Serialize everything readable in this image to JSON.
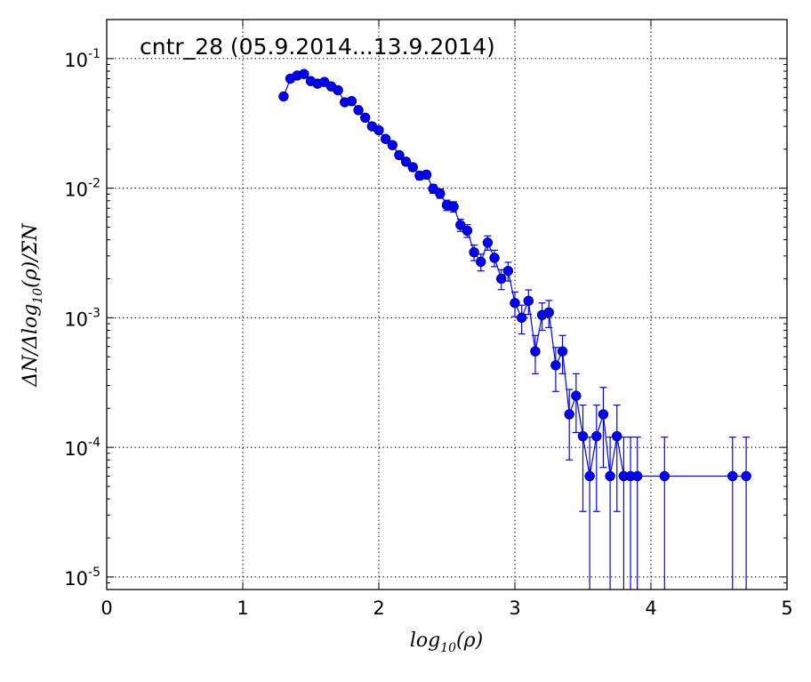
{
  "chart_data": {
    "type": "scatter",
    "title": "cntr_28 (05.9.2014...13.9.2014)",
    "xlabel": "log10(ρ)",
    "ylabel": "ΔN/Δlog10(ρ)/ΣN",
    "xlabel_parts": {
      "base": "log",
      "sub": "10",
      "arg": "(ρ)"
    },
    "ylabel_parts": {
      "pre": "ΔN/Δlog",
      "sub": "10",
      "arg": "(ρ)/ΣN"
    },
    "xlim": [
      0,
      5
    ],
    "ylim": [
      8e-06,
      0.2
    ],
    "yscale": "log",
    "grid": true,
    "legend": "none",
    "x_ticks": [
      {
        "value": 0,
        "label": "0"
      },
      {
        "value": 1,
        "label": "1"
      },
      {
        "value": 2,
        "label": "2"
      },
      {
        "value": 3,
        "label": "3"
      },
      {
        "value": 4,
        "label": "4"
      },
      {
        "value": 5,
        "label": "5"
      }
    ],
    "y_ticks": [
      {
        "value": 0.1,
        "base": "10",
        "exp": "-1"
      },
      {
        "value": 0.01,
        "base": "10",
        "exp": "-2"
      },
      {
        "value": 0.001,
        "base": "10",
        "exp": "-3"
      },
      {
        "value": 0.0001,
        "base": "10",
        "exp": "-4"
      },
      {
        "value": 1e-05,
        "base": "10",
        "exp": "-5"
      }
    ],
    "colors": {
      "line": "#0000ff",
      "marker_fill": "#0000ff",
      "marker_edge": "#000080"
    },
    "series": [
      {
        "x": [
          1.3,
          1.35,
          1.4,
          1.45,
          1.5,
          1.55,
          1.6,
          1.65,
          1.7,
          1.75,
          1.8,
          1.85,
          1.9,
          1.95,
          2.0,
          2.05,
          2.1,
          2.15,
          2.2,
          2.25,
          2.3,
          2.35,
          2.4,
          2.45,
          2.5,
          2.55,
          2.6,
          2.65,
          2.7,
          2.75,
          2.8,
          2.85,
          2.9,
          2.95,
          3.0,
          3.05,
          3.1,
          3.15,
          3.2,
          3.25,
          3.3,
          3.35,
          3.4,
          3.45,
          3.5,
          3.55,
          3.6,
          3.65,
          3.7,
          3.75,
          3.8,
          3.85,
          3.9,
          4.1,
          4.6,
          4.7
        ],
        "y": [
          0.051,
          0.07,
          0.074,
          0.076,
          0.067,
          0.064,
          0.066,
          0.061,
          0.057,
          0.046,
          0.047,
          0.04,
          0.035,
          0.03,
          0.028,
          0.024,
          0.0215,
          0.018,
          0.016,
          0.0145,
          0.0125,
          0.0127,
          0.0099,
          0.0091,
          0.0074,
          0.0072,
          0.0052,
          0.0047,
          0.0032,
          0.0027,
          0.0038,
          0.0029,
          0.002,
          0.0023,
          0.0013,
          0.001,
          0.00135,
          0.00055,
          0.00105,
          0.0011,
          0.00043,
          0.00055,
          0.00018,
          0.00025,
          0.000122,
          6e-05,
          0.000122,
          0.00018,
          6e-05,
          0.000122,
          6e-05,
          6e-05,
          6e-05,
          6e-05,
          6e-05,
          6e-05
        ],
        "err": [
          0.0018,
          0.0022,
          0.0022,
          0.0023,
          0.0021,
          0.002,
          0.0021,
          0.0019,
          0.0019,
          0.0017,
          0.0017,
          0.0016,
          0.0015,
          0.0014,
          0.0013,
          0.0012,
          0.0012,
          0.0011,
          0.001,
          0.00095,
          0.00088,
          0.00088,
          0.00078,
          0.00075,
          0.00068,
          0.00066,
          0.00056,
          0.00053,
          0.00044,
          0.0004,
          0.00048,
          0.00042,
          0.00035,
          0.00038,
          0.00028,
          0.00025,
          0.00029,
          0.00018,
          0.00025,
          0.00026,
          0.00016,
          0.00018,
          0.0001,
          0.00012,
          9e-05,
          6e-05,
          9e-05,
          0.00011,
          6e-05,
          9e-05,
          6e-05,
          6e-05,
          6e-05,
          6e-05,
          6e-05,
          6e-05
        ]
      }
    ]
  }
}
